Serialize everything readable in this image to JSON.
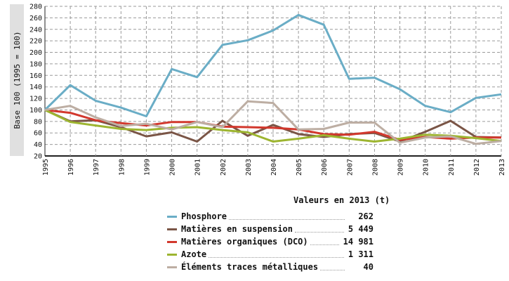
{
  "chart_data": {
    "type": "line",
    "ylabel": "Base 100 (1995 = 100)",
    "ylim": [
      20,
      280
    ],
    "yticks": [
      20,
      40,
      60,
      80,
      100,
      120,
      140,
      160,
      180,
      200,
      220,
      240,
      260,
      280
    ],
    "x": [
      "1995",
      "1996",
      "1997",
      "1998",
      "1999",
      "2000",
      "2001",
      "2002",
      "2003",
      "2004",
      "2005",
      "2006",
      "2007",
      "2008",
      "2009",
      "2010",
      "2011",
      "2012",
      "2013"
    ],
    "grid": true,
    "legend_title": "Valeurs en 2013 (t)",
    "series": [
      {
        "name": "Phosphore",
        "value_2013": "262",
        "color": "#6aadc6",
        "values": [
          100,
          143,
          116,
          104,
          89,
          171,
          157,
          213,
          221,
          238,
          265,
          248,
          154,
          156,
          136,
          107,
          96,
          121,
          127
        ]
      },
      {
        "name": "Matières en suspension",
        "value_2013": "5 449",
        "color": "#7a5546",
        "values": [
          100,
          80,
          82,
          70,
          54,
          61,
          45,
          81,
          55,
          74,
          58,
          53,
          58,
          60,
          45,
          62,
          81,
          53,
          52
        ]
      },
      {
        "name": "Matières organiques (DCO)",
        "value_2013": "14 981",
        "color": "#d2382d",
        "values": [
          100,
          95,
          82,
          77,
          73,
          79,
          79,
          71,
          70,
          69,
          66,
          58,
          57,
          62,
          48,
          53,
          50,
          52,
          52
        ]
      },
      {
        "name": "Azote",
        "value_2013": "1 311",
        "color": "#9db530",
        "values": [
          100,
          79,
          73,
          67,
          65,
          69,
          70,
          65,
          61,
          45,
          50,
          56,
          50,
          45,
          50,
          57,
          55,
          51,
          46
        ]
      },
      {
        "name": "Éléments traces métalliques",
        "value_2013": "40",
        "color": "#bdaea3",
        "values": [
          100,
          107,
          87,
          72,
          76,
          66,
          79,
          70,
          115,
          112,
          66,
          67,
          78,
          78,
          43,
          52,
          54,
          41,
          46
        ]
      }
    ]
  }
}
